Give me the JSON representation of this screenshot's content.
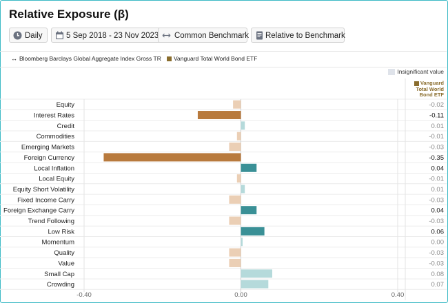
{
  "title": "Relative Exposure (β)",
  "toolbar": {
    "frequency": {
      "label": "Daily",
      "icon": "clock-icon"
    },
    "date_range": {
      "label": "5 Sep 2018 - 23 Nov 2023",
      "icon": "calendar-icon"
    },
    "benchmark": {
      "label": "Common Benchmark",
      "icon": "arrows-icon"
    },
    "mode": {
      "label": "Relative to Benchmark",
      "icon": "document-icon"
    }
  },
  "legend": {
    "benchmark": "Bloomberg Barclays Global Aggregate Index Gross TR",
    "fund": "Vanguard Total World Bond ETF",
    "insignificant": "Insignificant value"
  },
  "column_header": "Vanguard Total World Bond ETF",
  "colors": {
    "neg_significant": "#b87a3d",
    "neg_insignificant": "#ebcfb5",
    "pos_significant": "#3a9096",
    "pos_insignificant": "#b5dadb",
    "accent_border": "#3bb9c5",
    "fund_swatch": "#8a6d2d"
  },
  "chart_data": {
    "type": "bar",
    "orientation": "horizontal",
    "categories": [
      "Equity",
      "Interest Rates",
      "Credit",
      "Commodities",
      "Emerging Markets",
      "Foreign Currency",
      "Local Inflation",
      "Local Equity",
      "Equity Short Volatility",
      "Fixed Income Carry",
      "Foreign Exchange Carry",
      "Trend Following",
      "Low Risk",
      "Momentum",
      "Quality",
      "Value",
      "Small Cap",
      "Crowding"
    ],
    "values": [
      -0.02,
      -0.11,
      0.01,
      -0.01,
      -0.03,
      -0.35,
      0.04,
      -0.01,
      0.01,
      -0.03,
      0.04,
      -0.03,
      0.06,
      0.0,
      -0.03,
      -0.03,
      0.08,
      0.07
    ],
    "value_labels": [
      "-0.02",
      "-0.11",
      "0.01",
      "-0.01",
      "-0.03",
      "-0.35",
      "0.04",
      "-0.01",
      "0.01",
      "-0.03",
      "0.04",
      "-0.03",
      "0.06",
      "0.00",
      "-0.03",
      "-0.03",
      "0.08",
      "0.07"
    ],
    "significant": [
      false,
      true,
      false,
      false,
      false,
      true,
      true,
      false,
      false,
      false,
      true,
      false,
      true,
      false,
      false,
      false,
      false,
      false
    ],
    "xlim": [
      -0.42,
      0.42
    ],
    "xticks": [
      -0.4,
      0.0,
      0.4
    ],
    "xtick_labels": [
      "-0.40",
      "0.00",
      "0.40"
    ],
    "grid": true
  }
}
